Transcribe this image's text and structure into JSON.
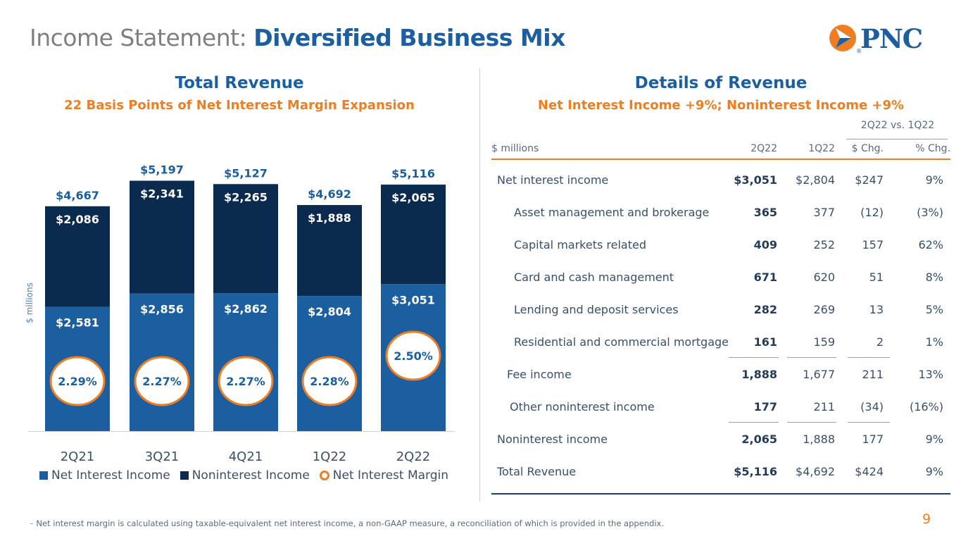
{
  "header": {
    "title_prefix": "Income Statement:",
    "title_main": "Diversified Business Mix",
    "logo_text": "PNC",
    "logo_mark": "®"
  },
  "left": {
    "title": "Total Revenue",
    "subtitle": "22 Basis Points of Net Interest Margin Expansion"
  },
  "right": {
    "title": "Details of Revenue",
    "subtitle": "Net Interest Income +9%; Noninterest Income +9%"
  },
  "chart_data": {
    "type": "bar",
    "stacked": true,
    "categories": [
      "2Q21",
      "3Q21",
      "4Q21",
      "1Q22",
      "2Q22"
    ],
    "series": [
      {
        "name": "Net Interest Income",
        "values": [
          2581,
          2856,
          2862,
          2804,
          3051
        ],
        "labels": [
          "$2,581",
          "$2,856",
          "$2,862",
          "$2,804",
          "$3,051"
        ],
        "color": "#1b5fa0"
      },
      {
        "name": "Noninterest Income",
        "values": [
          2086,
          2341,
          2265,
          1888,
          2065
        ],
        "labels": [
          "$2,086",
          "$2,341",
          "$2,265",
          "$1,888",
          "$2,065"
        ],
        "color": "#0b2a4f"
      }
    ],
    "totals": [
      "$4,667",
      "$5,197",
      "$5,127",
      "$4,692",
      "$5,116"
    ],
    "margin": {
      "name": "Net Interest Margin",
      "values": [
        "2.29%",
        "2.27%",
        "2.27%",
        "2.28%",
        "2.50%"
      ],
      "color": "#ef7d22"
    },
    "ylabel": "$ millions",
    "ylim": [
      0,
      6000
    ],
    "legend": "bottom"
  },
  "table": {
    "group_header": "2Q22 vs. 1Q22",
    "columns": [
      "$ millions",
      "2Q22",
      "1Q22",
      "$ Chg.",
      "% Chg."
    ],
    "rows": [
      {
        "label": "Net interest income",
        "v2q22": "$3,051",
        "v1q22": "$2,804",
        "chg": "$247",
        "pct": "9%"
      },
      {
        "label": "Asset management and brokerage",
        "v2q22": "365",
        "v1q22": "377",
        "chg": "(12)",
        "pct": "(3%)"
      },
      {
        "label": "Capital markets related",
        "v2q22": "409",
        "v1q22": "252",
        "chg": "157",
        "pct": "62%"
      },
      {
        "label": "Card and cash management",
        "v2q22": "671",
        "v1q22": "620",
        "chg": "51",
        "pct": "8%"
      },
      {
        "label": "Lending and deposit services",
        "v2q22": "282",
        "v1q22": "269",
        "chg": "13",
        "pct": "5%"
      },
      {
        "label": "Residential and commercial mortgage",
        "v2q22": "161",
        "v1q22": "159",
        "chg": "2",
        "pct": "1%"
      },
      {
        "label": "Fee income",
        "v2q22": "1,888",
        "v1q22": "1,677",
        "chg": "211",
        "pct": "13%"
      },
      {
        "label": "Other noninterest income",
        "v2q22": "177",
        "v1q22": "211",
        "chg": "(34)",
        "pct": "(16%)"
      },
      {
        "label": "Noninterest income",
        "v2q22": "2,065",
        "v1q22": "1,888",
        "chg": "177",
        "pct": "9%"
      },
      {
        "label": "Total Revenue",
        "v2q22": "$5,116",
        "v1q22": "$4,692",
        "chg": "$424",
        "pct": "9%"
      }
    ]
  },
  "footer": {
    "dash": "–",
    "note": "Net interest margin is calculated using taxable-equivalent net interest income, a non-GAAP measure, a reconciliation of which is provided in the appendix.",
    "page": "9"
  }
}
